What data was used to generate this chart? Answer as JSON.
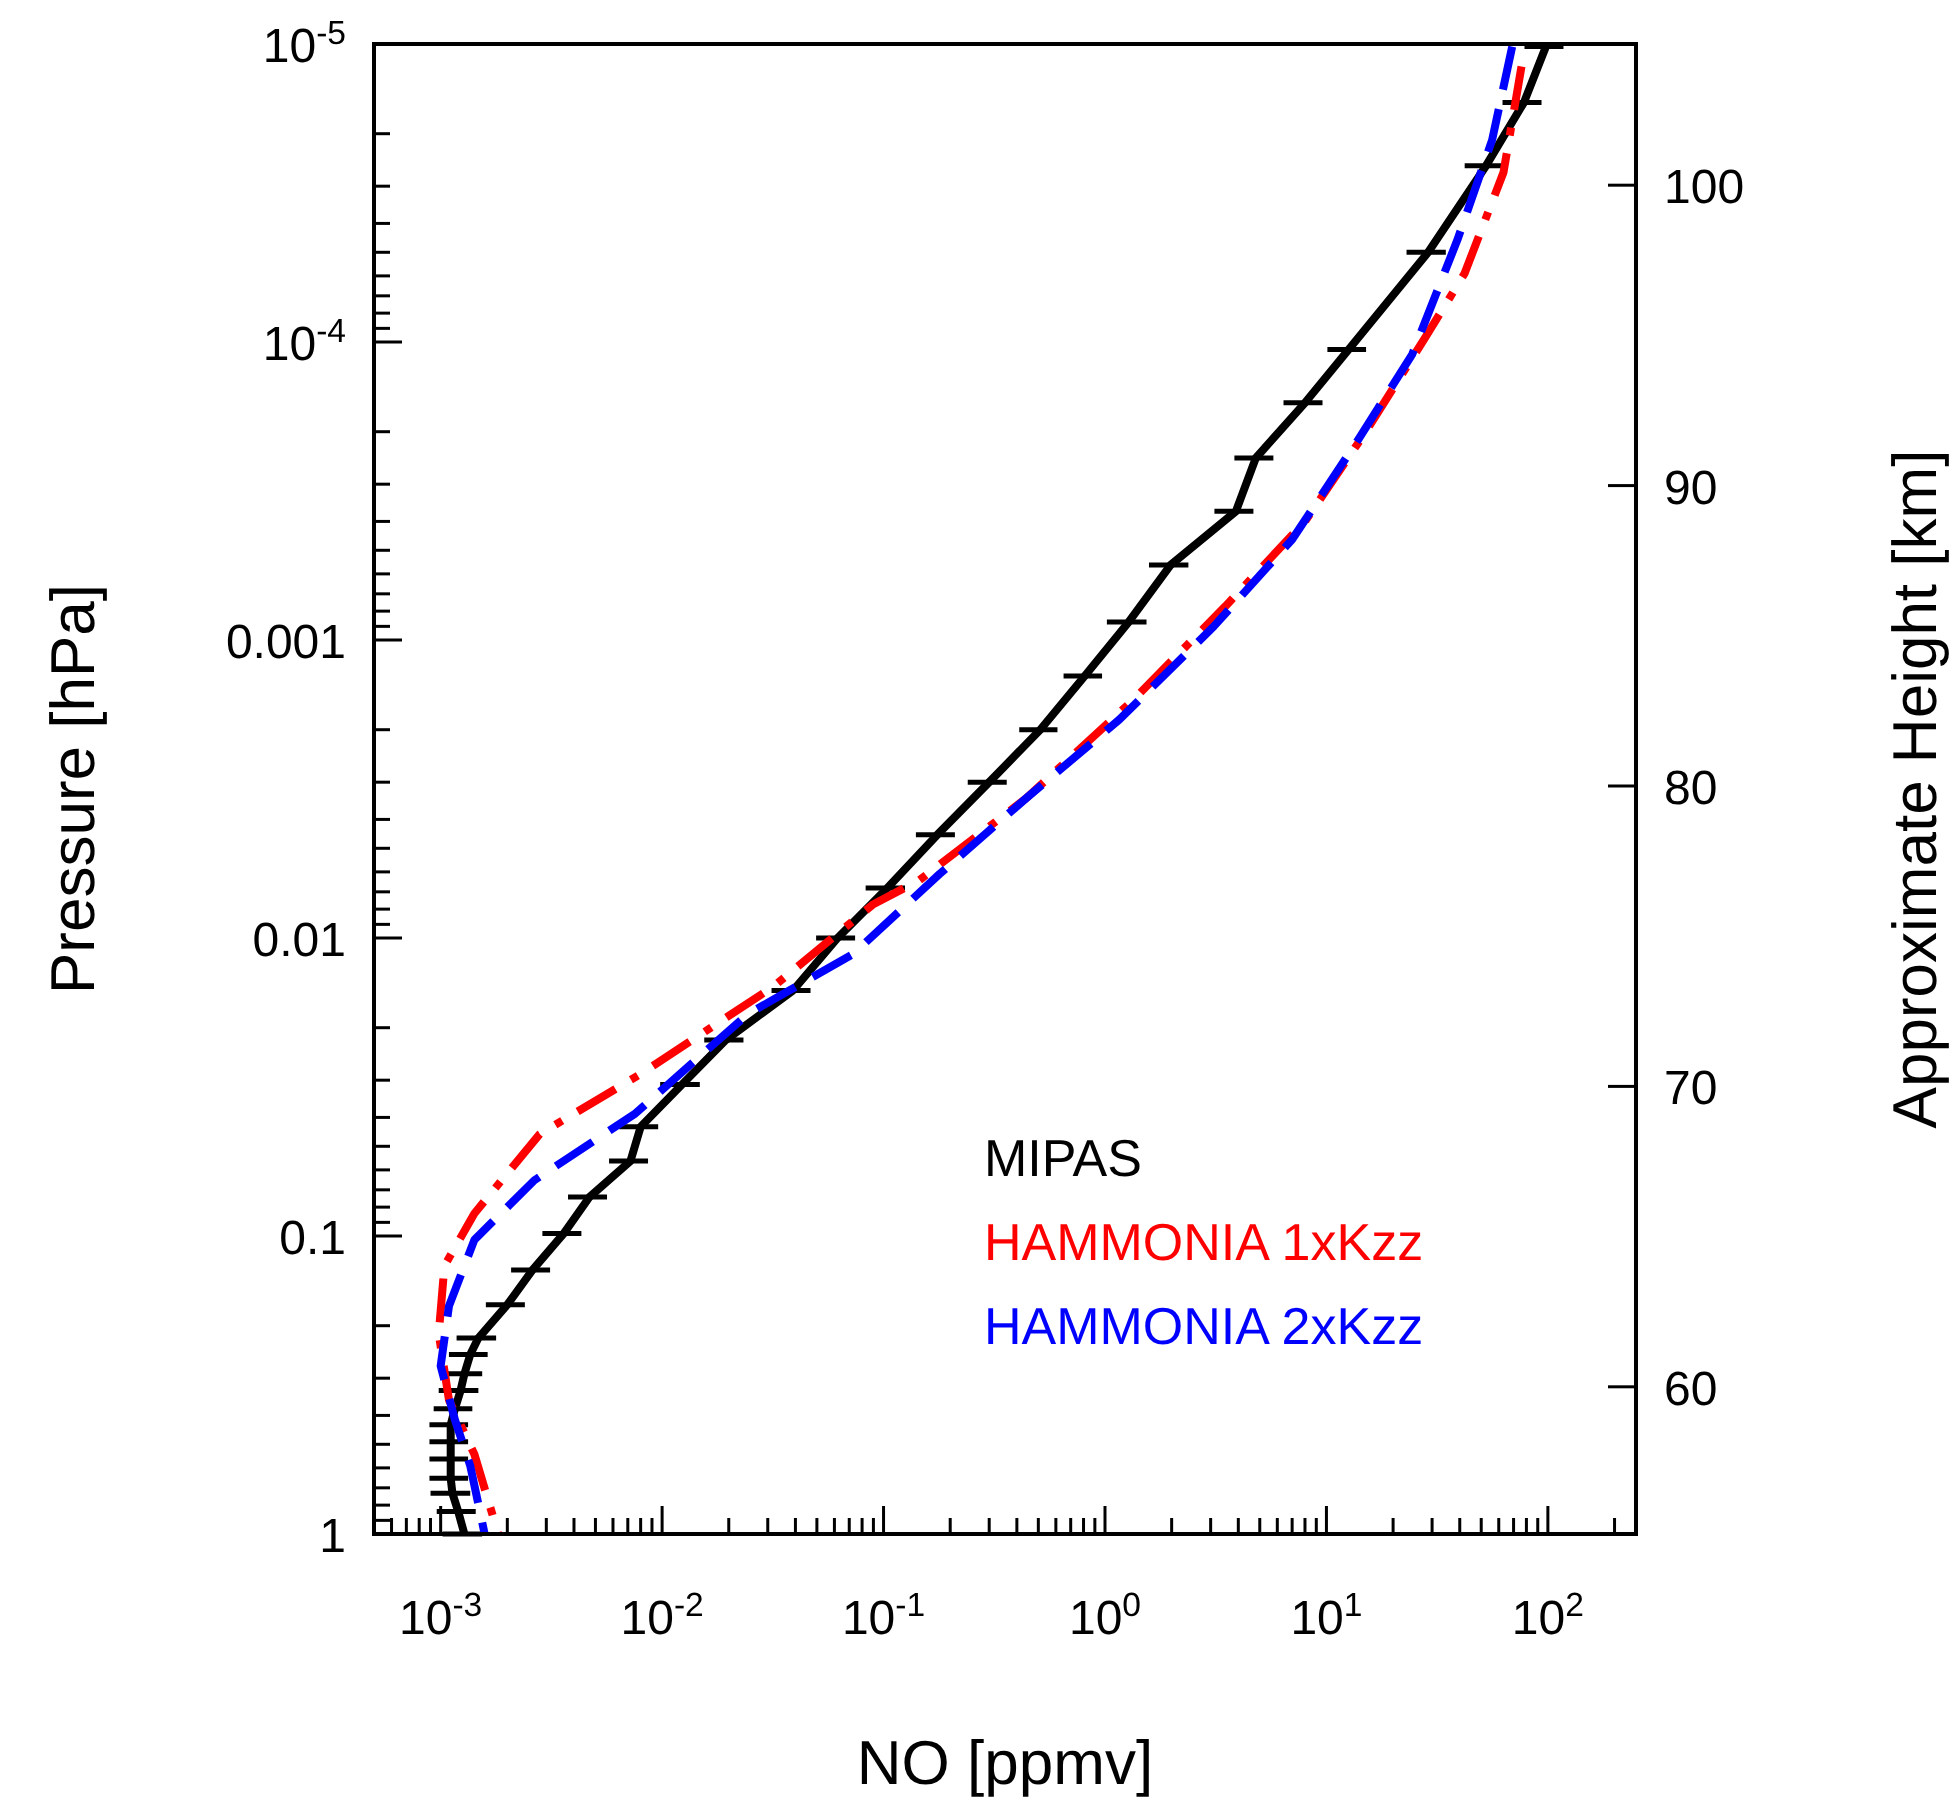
{
  "chart_data": {
    "type": "line",
    "xlabel": "NO [ppmv]",
    "ylabel": "Pressure [hPa]",
    "y2label": "Approximate Height [km]",
    "log": "xy",
    "grid": false,
    "legend": "bottom right",
    "xlim": [
      0.0005,
      250
    ],
    "ylim": [
      1,
      1e-05
    ],
    "y2lim": [
      55.1,
      104.7
    ],
    "xticks": [
      {
        "value": 0.0006,
        "label": null
      },
      {
        "value": 0.0007,
        "label": null
      },
      {
        "value": 0.0008,
        "label": null
      },
      {
        "value": 0.0009,
        "label": null
      },
      {
        "value": 0.001,
        "label": "10$^{-3}$"
      },
      {
        "value": 0.002,
        "label": null
      },
      {
        "value": 0.003,
        "label": null
      },
      {
        "value": 0.004,
        "label": null
      },
      {
        "value": 0.005,
        "label": null
      },
      {
        "value": 0.006,
        "label": null
      },
      {
        "value": 0.007,
        "label": null
      },
      {
        "value": 0.008,
        "label": null
      },
      {
        "value": 0.009,
        "label": null
      },
      {
        "value": 0.01,
        "label": "10$^{-2}$"
      },
      {
        "value": 0.02,
        "label": null
      },
      {
        "value": 0.03,
        "label": null
      },
      {
        "value": 0.04,
        "label": null
      },
      {
        "value": 0.05,
        "label": null
      },
      {
        "value": 0.06,
        "label": null
      },
      {
        "value": 0.07,
        "label": null
      },
      {
        "value": 0.08,
        "label": null
      },
      {
        "value": 0.09,
        "label": null
      },
      {
        "value": 0.1,
        "label": "10$^{-1}$"
      },
      {
        "value": 0.2,
        "label": null
      },
      {
        "value": 0.3,
        "label": null
      },
      {
        "value": 0.4,
        "label": null
      },
      {
        "value": 0.5,
        "label": null
      },
      {
        "value": 0.6,
        "label": null
      },
      {
        "value": 0.7,
        "label": null
      },
      {
        "value": 0.8,
        "label": null
      },
      {
        "value": 0.9,
        "label": null
      },
      {
        "value": 1,
        "label": "10$^{0}$"
      },
      {
        "value": 2,
        "label": null
      },
      {
        "value": 3,
        "label": null
      },
      {
        "value": 4,
        "label": null
      },
      {
        "value": 5,
        "label": null
      },
      {
        "value": 6,
        "label": null
      },
      {
        "value": 7,
        "label": null
      },
      {
        "value": 8,
        "label": null
      },
      {
        "value": 9,
        "label": null
      },
      {
        "value": 10,
        "label": "10$^{1}$"
      },
      {
        "value": 20,
        "label": null
      },
      {
        "value": 30,
        "label": null
      },
      {
        "value": 40,
        "label": null
      },
      {
        "value": 50,
        "label": null
      },
      {
        "value": 60,
        "label": null
      },
      {
        "value": 70,
        "label": null
      },
      {
        "value": 80,
        "label": null
      },
      {
        "value": 90,
        "label": null
      },
      {
        "value": 100,
        "label": "10$^{2}$"
      },
      {
        "value": 200,
        "label": null
      }
    ],
    "yticks": [
      {
        "value": 1e-05,
        "label": "10$^{-5}$"
      },
      {
        "value": 2e-05,
        "label": null
      },
      {
        "value": 3e-05,
        "label": null
      },
      {
        "value": 4e-05,
        "label": null
      },
      {
        "value": 5e-05,
        "label": null
      },
      {
        "value": 6e-05,
        "label": null
      },
      {
        "value": 7e-05,
        "label": null
      },
      {
        "value": 8e-05,
        "label": null
      },
      {
        "value": 9e-05,
        "label": null
      },
      {
        "value": 0.0001,
        "label": "10$^{-4}$"
      },
      {
        "value": 0.0002,
        "label": null
      },
      {
        "value": 0.0003,
        "label": null
      },
      {
        "value": 0.0004,
        "label": null
      },
      {
        "value": 0.0005,
        "label": null
      },
      {
        "value": 0.0006,
        "label": null
      },
      {
        "value": 0.0007,
        "label": null
      },
      {
        "value": 0.0008,
        "label": null
      },
      {
        "value": 0.0009,
        "label": null
      },
      0.001,
      {
        "value": 0.002,
        "label": null
      },
      {
        "value": 0.003,
        "label": null
      },
      {
        "value": 0.004,
        "label": null
      },
      {
        "value": 0.005,
        "label": null
      },
      {
        "value": 0.006,
        "label": null
      },
      {
        "value": 0.007,
        "label": null
      },
      {
        "value": 0.008,
        "label": null
      },
      {
        "value": 0.009,
        "label": null
      },
      0.01,
      {
        "value": 0.02,
        "label": null
      },
      {
        "value": 0.03,
        "label": null
      },
      {
        "value": 0.04,
        "label": null
      },
      {
        "value": 0.05,
        "label": null
      },
      {
        "value": 0.06,
        "label": null
      },
      {
        "value": 0.07,
        "label": null
      },
      {
        "value": 0.08,
        "label": null
      },
      {
        "value": 0.09,
        "label": null
      },
      0.1,
      {
        "value": 0.2,
        "label": null
      },
      {
        "value": 0.3,
        "label": null
      },
      {
        "value": 0.4,
        "label": null
      },
      {
        "value": 0.5,
        "label": null
      },
      {
        "value": 0.6,
        "label": null
      },
      {
        "value": 0.7,
        "label": null
      },
      {
        "value": 0.8,
        "label": null
      },
      {
        "value": 0.9,
        "label": null
      },
      1
    ],
    "y2ticks": [
      60,
      70,
      80,
      90,
      100
    ],
    "series": [
      {
        "name": "MIPAS",
        "color": "#000000",
        "line_style": "solid",
        "x": [
          0.00128,
          0.0012,
          0.00113,
          0.00111,
          0.00111,
          0.00111,
          0.00111,
          0.00116,
          0.00123,
          0.00128,
          0.00136,
          0.00148,
          0.002,
          0.0026,
          0.0036,
          0.0047,
          0.0072,
          0.008,
          0.0123,
          0.0194,
          0.039,
          0.062,
          0.104,
          0.175,
          0.3,
          0.51,
          0.81,
          1.28,
          1.98,
          3.9,
          4.8,
          8,
          12.6,
          28.8,
          52.6,
          78,
          98
        ],
        "values": [
          1,
          0.84,
          0.73,
          0.65,
          0.56,
          0.49,
          0.43,
          0.38,
          0.33,
          0.29,
          0.25,
          0.22,
          0.17,
          0.13,
          0.098,
          0.074,
          0.056,
          0.043,
          0.031,
          0.022,
          0.015,
          0.01,
          0.0068,
          0.0045,
          0.003,
          0.002,
          0.00132,
          0.00087,
          0.00056,
          0.00037,
          0.000245,
          0.00016,
          0.000106,
          5e-05,
          2.56e-05,
          1.57e-05,
          1.02e-05
        ],
        "xerrors": [
          0.00026,
          0.00024,
          0.00023,
          0.00022,
          0.00022,
          0.00022,
          0.00022,
          0.00023,
          0.00025,
          0.00026,
          0.00027,
          0.0003,
          0.0004,
          0.00052,
          0.00072,
          0.00094,
          0.00144,
          0.0016,
          0.0025,
          0.0039,
          0.0078,
          0.0124,
          0.021,
          0.035,
          0.06,
          0.1,
          0.16,
          0.26,
          0.4,
          0.78,
          0.96,
          1.6,
          2.5,
          5.8,
          10.5,
          15.6,
          19.6
        ]
      },
      {
        "name": "HAMMONIA 1xKzz",
        "color": "#ff0000",
        "line_style": "dashdot",
        "x": [
          76,
          63,
          42,
          27.6,
          14.8,
          8,
          3.5,
          1.34,
          0.44,
          0.145,
          0.09,
          0.032,
          0.008,
          0.0028,
          0.00142,
          0.00104,
          0.00098,
          0.00109,
          0.00142,
          0.00182
        ],
        "values": [
          1.19e-05,
          2.7e-05,
          5.9e-05,
          9.8e-05,
          0.000204,
          0.0004,
          0.00077,
          0.00159,
          0.0034,
          0.0064,
          0.0077,
          0.0145,
          0.0286,
          0.0455,
          0.084,
          0.126,
          0.213,
          0.355,
          0.54,
          1
        ]
      },
      {
        "name": "HAMMONIA 2xKzz",
        "color": "#0000ff",
        "line_style": "dashed",
        "x": [
          69,
          56,
          39,
          24.4,
          13.9,
          7,
          3.1,
          1.16,
          0.44,
          0.179,
          0.073,
          0.0244,
          0.0075,
          0.00265,
          0.00142,
          0.00109,
          0.001,
          0.00116,
          0.00136,
          0.00158
        ],
        "values": [
          1.02e-05,
          2.1e-05,
          4.55e-05,
          0.00011,
          0.000213,
          0.00046,
          0.0009,
          0.00185,
          0.0034,
          0.0061,
          0.0113,
          0.018,
          0.039,
          0.065,
          0.103,
          0.172,
          0.273,
          0.414,
          0.59,
          1
        ]
      }
    ]
  }
}
